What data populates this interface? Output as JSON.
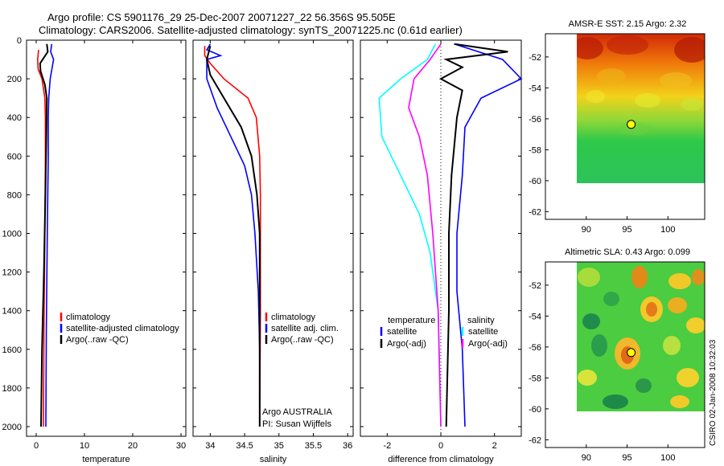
{
  "header": {
    "line1": "Argo profile: CS 5901176_29 25-Dec-2007 20071227_22 56.356S 95.505E",
    "line2": "Climatology: CARS2006. Satellite-adjusted climatology: synTS_20071225.nc (0.61d earlier)"
  },
  "side_label": "CSIRO 02-Jan-2008 10:32:03",
  "colors": {
    "climatology": "#ff0000",
    "satellite": "#0000ff",
    "argo": "#000000",
    "argo_adj_t": "#00ffff",
    "argo_adj_s": "#ff00ff",
    "marker": "#ffff00"
  },
  "chart_data": [
    {
      "type": "line",
      "panel": "temperature",
      "xlabel": "temperature",
      "xlim": [
        -2,
        31
      ],
      "ylim": [
        2050,
        0
      ],
      "y_reversed": true,
      "xticks": [
        0,
        10,
        20,
        30
      ],
      "yticks": [
        0,
        200,
        400,
        600,
        800,
        1000,
        1200,
        1400,
        1600,
        1800,
        2000
      ],
      "legend": [
        "climatology",
        "satellite-adjusted climatology",
        "Argo(..raw -QC)"
      ],
      "series": [
        {
          "name": "climatology",
          "color": "#ff0000",
          "points": [
            [
              0.5,
              50
            ],
            [
              0.3,
              100
            ],
            [
              0.4,
              150
            ],
            [
              1.2,
              200
            ],
            [
              1.8,
              300
            ],
            [
              1.9,
              400
            ],
            [
              1.9,
              600
            ],
            [
              1.8,
              1000
            ],
            [
              1.6,
              1500
            ],
            [
              1.5,
              2000
            ]
          ]
        },
        {
          "name": "satellite-adjusted climatology",
          "color": "#0000ff",
          "points": [
            [
              3.2,
              20
            ],
            [
              3.0,
              60
            ],
            [
              3.6,
              100
            ],
            [
              2.9,
              200
            ],
            [
              2.6,
              300
            ],
            [
              2.5,
              400
            ],
            [
              2.5,
              600
            ],
            [
              2.3,
              1000
            ],
            [
              2.1,
              1500
            ],
            [
              2.0,
              2000
            ]
          ]
        },
        {
          "name": "Argo(..raw -QC)",
          "color": "#000000",
          "points": [
            [
              2.2,
              20
            ],
            [
              2.4,
              60
            ],
            [
              0.8,
              120
            ],
            [
              0.9,
              160
            ],
            [
              1.8,
              230
            ],
            [
              2.2,
              300
            ],
            [
              2.1,
              500
            ],
            [
              1.9,
              800
            ],
            [
              1.6,
              1200
            ],
            [
              1.2,
              1600
            ],
            [
              1.0,
              2000
            ]
          ]
        }
      ]
    },
    {
      "type": "line",
      "panel": "salinity",
      "xlabel": "salinity",
      "xlim": [
        33.75,
        36.08
      ],
      "ylim": [
        2050,
        0
      ],
      "y_reversed": true,
      "xticks": [
        34,
        34.5,
        35,
        35.5,
        36
      ],
      "yticks": [
        0,
        200,
        400,
        600,
        800,
        1000,
        1200,
        1400,
        1600,
        1800,
        2000
      ],
      "legend": [
        "climatology",
        "satellite adj. clim.",
        "Argo(..raw -QC)"
      ],
      "annotations": [
        "Argo AUSTRALIA",
        "PI: Susan Wijffels"
      ],
      "series": [
        {
          "name": "climatology",
          "color": "#ff0000",
          "points": [
            [
              33.92,
              30
            ],
            [
              33.92,
              80
            ],
            [
              34.0,
              120
            ],
            [
              34.2,
              200
            ],
            [
              34.55,
              300
            ],
            [
              34.67,
              400
            ],
            [
              34.72,
              600
            ],
            [
              34.73,
              800
            ],
            [
              34.73,
              1000
            ],
            [
              34.73,
              1400
            ],
            [
              34.72,
              2000
            ]
          ]
        },
        {
          "name": "satellite adj. clim.",
          "color": "#0000ff",
          "points": [
            [
              34.0,
              20
            ],
            [
              33.95,
              50
            ],
            [
              34.15,
              80
            ],
            [
              33.95,
              100
            ],
            [
              33.95,
              200
            ],
            [
              34.1,
              350
            ],
            [
              34.3,
              500
            ],
            [
              34.5,
              650
            ],
            [
              34.6,
              800
            ],
            [
              34.65,
              1000
            ],
            [
              34.7,
              1300
            ],
            [
              34.72,
              1600
            ],
            [
              34.72,
              2000
            ]
          ]
        },
        {
          "name": "Argo(..raw -QC)",
          "color": "#000000",
          "points": [
            [
              34.0,
              30
            ],
            [
              33.95,
              100
            ],
            [
              34.0,
              180
            ],
            [
              34.2,
              300
            ],
            [
              34.45,
              450
            ],
            [
              34.6,
              600
            ],
            [
              34.68,
              800
            ],
            [
              34.72,
              1000
            ],
            [
              34.72,
              1500
            ],
            [
              34.72,
              2000
            ]
          ]
        }
      ]
    },
    {
      "type": "line",
      "panel": "difference",
      "xlabel": "difference from climatology",
      "xlim": [
        -3,
        3
      ],
      "ylim": [
        2050,
        0
      ],
      "y_reversed": true,
      "xticks": [
        -2,
        0,
        2
      ],
      "yticks": [
        0,
        200,
        400,
        600,
        800,
        1000,
        1200,
        1400,
        1600,
        1800,
        2000
      ],
      "legend": {
        "temperature": {
          "heading": "temperature",
          "items": [
            "satellite",
            "Argo(-adj)"
          ]
        },
        "salinity": {
          "heading": "salinity",
          "items": [
            "satellite",
            "Argo(-adj)"
          ]
        }
      },
      "series": [
        {
          "name": "temperature satellite",
          "color": "#0000ff",
          "points": [
            [
              0.5,
              20
            ],
            [
              2.3,
              100
            ],
            [
              3.0,
              200
            ],
            [
              1.5,
              300
            ],
            [
              0.9,
              450
            ],
            [
              0.8,
              700
            ],
            [
              0.6,
              1000
            ],
            [
              0.6,
              1300
            ],
            [
              0.8,
              1600
            ],
            [
              0.9,
              2000
            ]
          ]
        },
        {
          "name": "temperature Argo(-adj)",
          "color": "#000000",
          "points": [
            [
              0.5,
              20
            ],
            [
              2.5,
              60
            ],
            [
              0.2,
              100
            ],
            [
              0.8,
              140
            ],
            [
              0.0,
              200
            ],
            [
              0.8,
              260
            ],
            [
              0.6,
              400
            ],
            [
              0.4,
              700
            ],
            [
              0.3,
              1000
            ],
            [
              0.3,
              1400
            ],
            [
              0.2,
              2000
            ]
          ]
        },
        {
          "name": "salinity satellite",
          "color": "#00ffff",
          "points": [
            [
              -0.2,
              20
            ],
            [
              -0.5,
              100
            ],
            [
              -1.5,
              200
            ],
            [
              -2.3,
              300
            ],
            [
              -2.2,
              500
            ],
            [
              -1.5,
              700
            ],
            [
              -0.8,
              900
            ],
            [
              -0.4,
              1100
            ],
            [
              -0.1,
              1400
            ],
            [
              0.0,
              2000
            ]
          ]
        },
        {
          "name": "salinity Argo(-adj)",
          "color": "#ff00ff",
          "points": [
            [
              0.0,
              20
            ],
            [
              -0.4,
              100
            ],
            [
              -1.0,
              200
            ],
            [
              -1.2,
              350
            ],
            [
              -0.8,
              500
            ],
            [
              -0.5,
              700
            ],
            [
              -0.3,
              1000
            ],
            [
              -0.1,
              1400
            ],
            [
              0.0,
              2000
            ]
          ]
        }
      ]
    },
    {
      "type": "heatmap",
      "panel": "sst",
      "title": "AMSR-E SST: 2.15  Argo: 2.32",
      "xlim": [
        85,
        104.5
      ],
      "ylim": [
        -62.5,
        -50.5
      ],
      "xticks": [
        90,
        95,
        100
      ],
      "yticks": [
        -52,
        -54,
        -56,
        -58,
        -60,
        -62
      ],
      "argo_position": [
        95.5,
        -56.36
      ]
    },
    {
      "type": "heatmap",
      "panel": "sla",
      "title": "Altimetric SLA: 0.43  Argo: 0.099",
      "xlim": [
        85,
        104.5
      ],
      "ylim": [
        -62.5,
        -50.5
      ],
      "xticks": [
        90,
        95,
        100
      ],
      "yticks": [
        -52,
        -54,
        -56,
        -58,
        -60,
        -62
      ],
      "argo_position": [
        95.5,
        -56.36
      ]
    }
  ]
}
